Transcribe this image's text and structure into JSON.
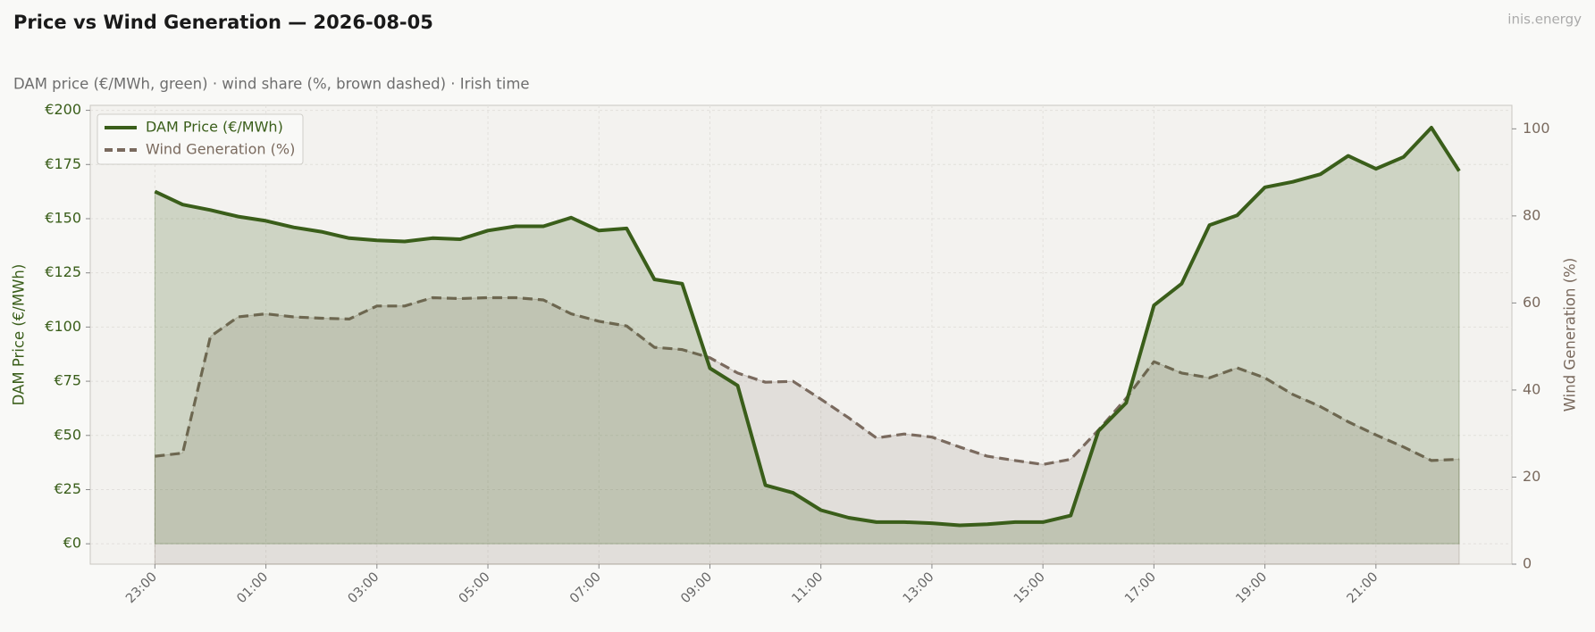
{
  "chart_data": {
    "type": "line",
    "title": "Price vs Wind Generation — 2026-08-05",
    "subtitle": "DAM price (€/MWh, green)  ·  wind share (%, brown dashed)  ·  Irish time",
    "watermark": "inis.energy",
    "ylabel": "DAM Price (€/MWh)",
    "y2label": "Wind Generation (%)",
    "categories": [
      "23:00",
      null,
      null,
      null,
      "01:00",
      null,
      null,
      null,
      "03:00",
      null,
      null,
      null,
      "05:00",
      null,
      null,
      null,
      "07:00",
      null,
      null,
      null,
      "09:00",
      null,
      null,
      null,
      "11:00",
      null,
      null,
      null,
      "13:00",
      null,
      null,
      null,
      "15:00",
      null,
      null,
      null,
      "17:00",
      null,
      null,
      null,
      "19:00",
      null,
      null,
      null,
      "21:00",
      null,
      null,
      null
    ],
    "series": [
      {
        "name": "DAM Price (€/MWh)",
        "color": "#3a5e1a",
        "style": "solid",
        "fill": true,
        "values": [
          162.5,
          156.5,
          154,
          151,
          149,
          146,
          144,
          141,
          140,
          139.5,
          141,
          140.5,
          144.5,
          146.5,
          146.5,
          150.5,
          144.5,
          145.5,
          122,
          120,
          81,
          73,
          27,
          23.5,
          15.5,
          12,
          10,
          10,
          9.5,
          8.5,
          9,
          10,
          10,
          13,
          52,
          65,
          110,
          120,
          147,
          151.5,
          164.5,
          167,
          170.5,
          179,
          173,
          178.5,
          192,
          172
        ]
      },
      {
        "name": "Wind Generation (%)",
        "color": "#7a6a5e",
        "style": "dashed",
        "fill": true,
        "axis": "y2",
        "values": [
          24.8,
          25.5,
          52.3,
          56.8,
          57.5,
          56.8,
          56.5,
          56.3,
          59.3,
          59.3,
          61.2,
          61,
          61.2,
          61.2,
          60.7,
          57.5,
          55.8,
          54.7,
          49.8,
          49.3,
          47.4,
          43.9,
          41.8,
          42,
          37.9,
          33.6,
          29,
          29.9,
          29.2,
          26.9,
          24.8,
          23.8,
          22.9,
          24.1,
          30.8,
          38.1,
          46.5,
          43.9,
          42.8,
          45.1,
          42.8,
          39,
          36.2,
          32.7,
          29.7,
          26.9,
          23.8,
          24.1
        ]
      }
    ],
    "ylim": [
      -9.4,
      202.3
    ],
    "yticks": [
      {
        "value": 0,
        "label": "€0"
      },
      {
        "value": 25,
        "label": "€25"
      },
      {
        "value": 50,
        "label": "€50"
      },
      {
        "value": 75,
        "label": "€75"
      },
      {
        "value": 100,
        "label": "€100"
      },
      {
        "value": 125,
        "label": "€125"
      },
      {
        "value": 150,
        "label": "€150"
      },
      {
        "value": 175,
        "label": "€175"
      },
      {
        "value": 200,
        "label": "€200"
      }
    ],
    "y2lim": [
      0,
      105.4
    ],
    "y2ticks": [
      0,
      20,
      40,
      60,
      80,
      100
    ],
    "grid": true,
    "legend": "upper left"
  }
}
